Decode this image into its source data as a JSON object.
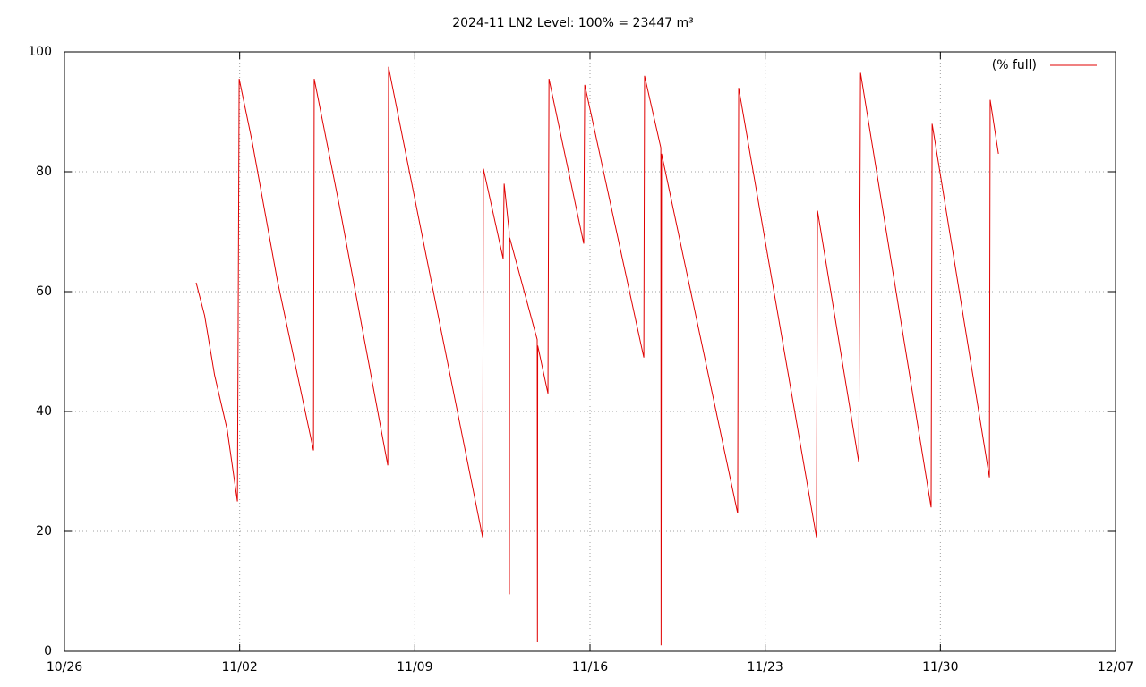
{
  "chart_data": {
    "type": "line",
    "title": "2024-11 LN2 Level: 100% = 23447 m³",
    "xlim": [
      0,
      42
    ],
    "ylim": [
      0,
      100
    ],
    "xticks": [
      {
        "value": 0,
        "label": "10/26"
      },
      {
        "value": 7,
        "label": "11/02"
      },
      {
        "value": 14,
        "label": "11/09"
      },
      {
        "value": 21,
        "label": "11/16"
      },
      {
        "value": 28,
        "label": "11/23"
      },
      {
        "value": 35,
        "label": "11/30"
      },
      {
        "value": 42,
        "label": "12/07"
      }
    ],
    "yticks": [
      0,
      20,
      40,
      60,
      80,
      100
    ],
    "grid": true,
    "legend": "top right",
    "x": [
      5.26,
      5.6,
      6.0,
      6.5,
      6.91,
      6.98,
      7.5,
      8.5,
      9.95,
      9.98,
      11.0,
      12.92,
      12.95,
      13.02,
      14.5,
      16.71,
      16.74,
      17.53,
      17.57,
      17.77,
      17.78,
      17.79,
      18.89,
      18.9,
      18.91,
      19.32,
      19.36,
      20.75,
      20.79,
      23.15,
      23.18,
      23.83,
      23.84,
      23.86,
      26.9,
      26.94,
      30.05,
      30.09,
      31.74,
      31.81,
      34.63,
      34.67,
      36.96,
      36.99,
      37.32
    ],
    "series": [
      {
        "name": "(% full)",
        "color": "#e00000",
        "values": [
          61.5,
          56,
          46,
          37,
          25,
          95.5,
          85,
          62,
          33.5,
          95.5,
          74,
          31,
          97.5,
          96,
          65,
          19,
          80.5,
          65.5,
          78,
          70,
          9.5,
          69,
          52,
          1.5,
          51,
          43,
          95.5,
          68,
          94.5,
          49,
          96,
          84,
          1,
          83,
          23,
          94,
          19,
          73.5,
          31.5,
          96.5,
          24,
          88,
          29,
          92,
          83
        ]
      }
    ]
  }
}
